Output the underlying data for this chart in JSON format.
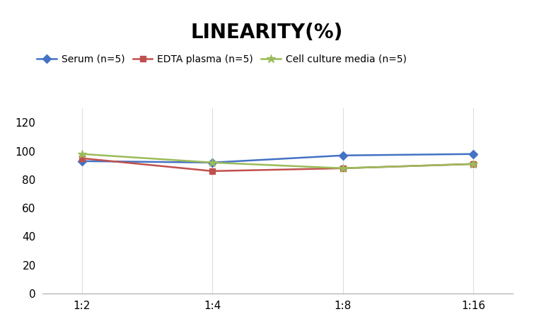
{
  "title": "LINEARITY(%)",
  "title_fontsize": 20,
  "title_fontweight": "bold",
  "x_labels": [
    "1:2",
    "1:4",
    "1:8",
    "1:16"
  ],
  "x_positions": [
    0,
    1,
    2,
    3
  ],
  "series": [
    {
      "label": "Serum (n=5)",
      "values": [
        93,
        92,
        97,
        98
      ],
      "color": "#4472C4",
      "marker": "D",
      "markersize": 6,
      "linewidth": 1.8
    },
    {
      "label": "EDTA plasma (n=5)",
      "values": [
        95,
        86,
        88,
        91
      ],
      "color": "#C0504D",
      "marker": "s",
      "markersize": 6,
      "linewidth": 1.8
    },
    {
      "label": "Cell culture media (n=5)",
      "values": [
        98,
        92,
        88,
        91
      ],
      "color": "#9BBB59",
      "marker": "*",
      "markersize": 9,
      "linewidth": 1.8
    }
  ],
  "ylim": [
    0,
    130
  ],
  "yticks": [
    0,
    20,
    40,
    60,
    80,
    100,
    120
  ],
  "grid_color": "#DDDDDD",
  "background_color": "#FFFFFF",
  "legend_fontsize": 10,
  "axis_fontsize": 11
}
